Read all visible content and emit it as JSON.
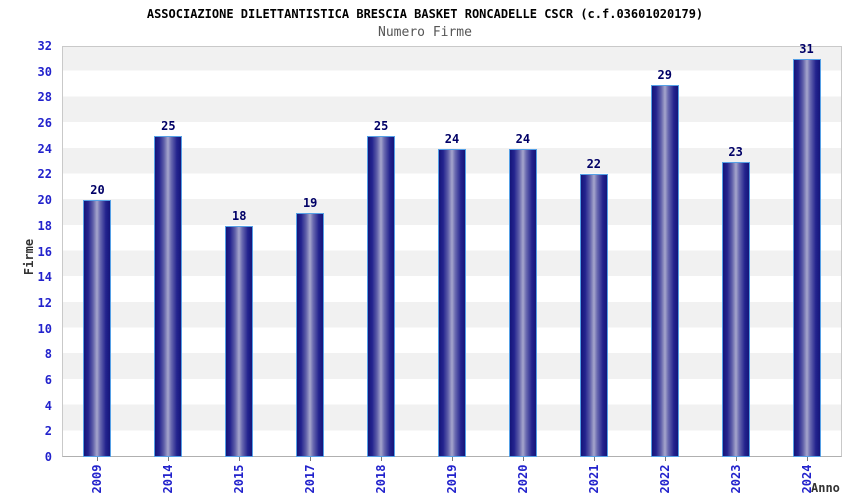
{
  "chart_data": {
    "type": "bar",
    "title": "ASSOCIAZIONE DILETTANTISTICA BRESCIA BASKET RONCADELLE CSCR (c.f.03601020179)",
    "subtitle": "Numero Firme",
    "xlabel": "Anno",
    "ylabel": "Firme",
    "categories": [
      "2009",
      "2014",
      "2015",
      "2017",
      "2018",
      "2019",
      "2020",
      "2021",
      "2022",
      "2023",
      "2024"
    ],
    "values": [
      20,
      25,
      18,
      19,
      25,
      24,
      24,
      22,
      29,
      23,
      31
    ],
    "ylim": [
      0,
      32
    ],
    "ytick_step": 2,
    "grid": "horizontal alternating bands every 2 units",
    "legend": "none",
    "colors": {
      "bar_edge": "#15157a",
      "bar_center": "#a6a6cc",
      "bar_border": "#55a0e6",
      "tick_label": "#2222cc",
      "value_label": "#000066",
      "band_gray": "#f1f1f1",
      "band_white": "#ffffff",
      "title_text": "#000000",
      "subtitle_text": "#565656",
      "axis_title_text": "#333333",
      "plot_border": "#c9c9c9"
    }
  }
}
